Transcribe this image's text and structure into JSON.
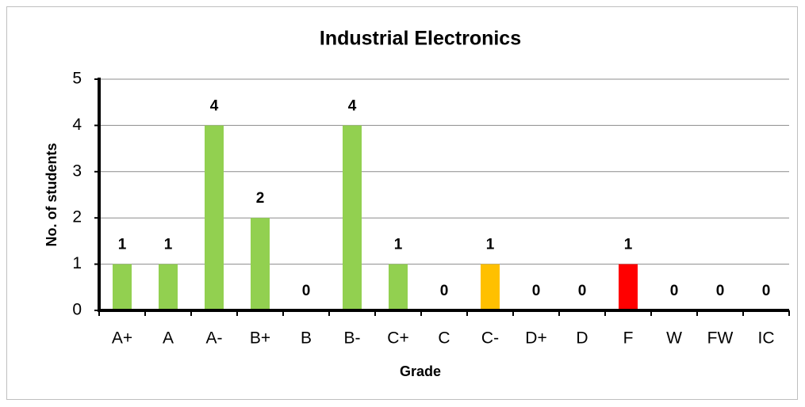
{
  "chart_data": {
    "type": "bar",
    "title": "Industrial Electronics",
    "x_label": "Grade",
    "y_label": "No. of students",
    "categories": [
      "A+",
      "A",
      "A-",
      "B+",
      "B",
      "B-",
      "C+",
      "C",
      "C-",
      "D+",
      "D",
      "F",
      "W",
      "FW",
      "IC"
    ],
    "values": [
      1,
      1,
      4,
      2,
      0,
      4,
      1,
      0,
      1,
      0,
      0,
      1,
      0,
      0,
      0
    ],
    "colors": [
      "#92d050",
      "#92d050",
      "#92d050",
      "#92d050",
      "#92d050",
      "#92d050",
      "#92d050",
      "#92d050",
      "#ffc000",
      "#ff0000",
      "#ff0000",
      "#ff0000",
      "#ff0000",
      "#ff0000",
      "#ff0000"
    ],
    "ylim": [
      0,
      5
    ],
    "yticks": [
      0,
      1,
      2,
      3,
      4,
      5
    ],
    "grid": true
  }
}
